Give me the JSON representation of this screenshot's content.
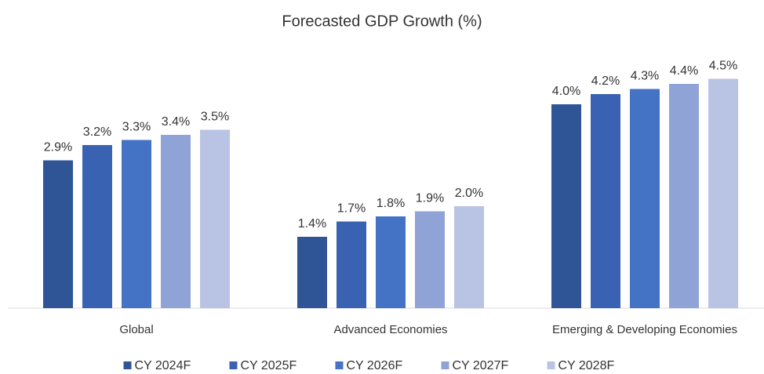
{
  "chart_data": {
    "type": "bar",
    "title": "Forecasted GDP Growth (%)",
    "categories": [
      "Global",
      "Advanced Economies",
      "Emerging & Developing Economies"
    ],
    "series": [
      {
        "name": "CY 2024F",
        "color": "#2f5597",
        "values": [
          2.9,
          1.4,
          4.0
        ],
        "value_labels": [
          "2.9%",
          "1.4%",
          "4.0%"
        ]
      },
      {
        "name": "CY 2025F",
        "color": "#3a62b2",
        "values": [
          3.2,
          1.7,
          4.2
        ],
        "value_labels": [
          "3.2%",
          "1.7%",
          "4.2%"
        ]
      },
      {
        "name": "CY 2026F",
        "color": "#4472c4",
        "values": [
          3.3,
          1.8,
          4.3
        ],
        "value_labels": [
          "3.3%",
          "1.8%",
          "4.3%"
        ]
      },
      {
        "name": "CY 2027F",
        "color": "#8fa3d6",
        "values": [
          3.4,
          1.9,
          4.4
        ],
        "value_labels": [
          "3.4%",
          "1.9%",
          "4.4%"
        ]
      },
      {
        "name": "CY 2028F",
        "color": "#b9c3e4",
        "values": [
          3.5,
          2.0,
          4.5
        ],
        "value_labels": [
          "3.5%",
          "2.0%",
          "4.5%"
        ]
      }
    ],
    "ylim": [
      0,
      5
    ],
    "legend": "bottom"
  }
}
